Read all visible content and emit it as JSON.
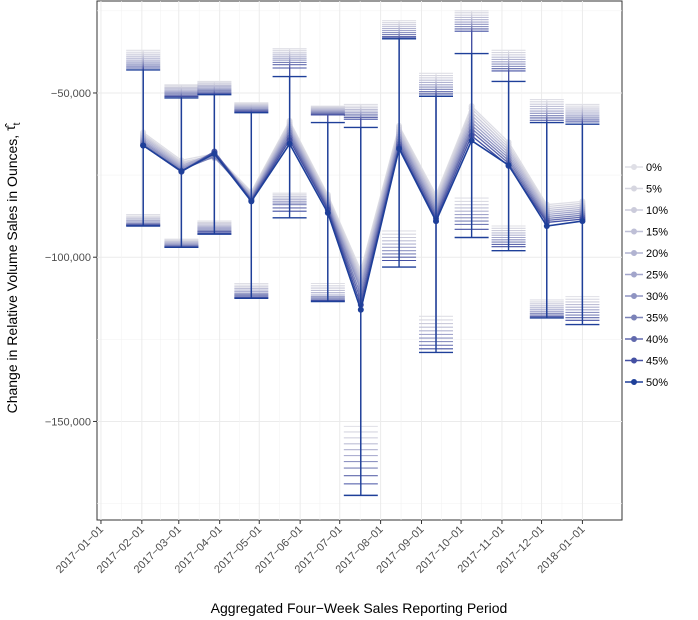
{
  "chart_data": {
    "type": "line",
    "xlabel": "Aggregated Four−Week Sales Reporting Period",
    "ylabel": "Change in Relative Volume Sales in Ounces, ",
    "ylabel_symbol": "τ̂",
    "ylabel_subscript": "t",
    "x_ticks": [
      "2017−01−01",
      "2017−02−01",
      "2017−03−01",
      "2017−04−01",
      "2017−05−01",
      "2017−06−01",
      "2017−07−01",
      "2017−08−01",
      "2017−09−01",
      "2017−10−01",
      "2017−11−01",
      "2017−12−01",
      "2018−01−01"
    ],
    "x_tick_days": [
      0,
      31,
      59,
      90,
      120,
      151,
      181,
      212,
      243,
      273,
      304,
      334,
      365
    ],
    "x_range_days": [
      -3,
      395
    ],
    "ylim": [
      -180000,
      -22000
    ],
    "y_ticks": [
      -150000,
      -100000,
      -50000
    ],
    "y_tick_labels": [
      "−150,000",
      "−100,000",
      "−50,000"
    ],
    "point_days": [
      32,
      61,
      86,
      114,
      143,
      172,
      197,
      226,
      254,
      281,
      309,
      338,
      365
    ],
    "legend_title": "",
    "series": [
      {
        "name": "0%",
        "color": "#dfdfe6",
        "values": [
          -62000,
          -70500,
          -68500,
          -80000,
          -58500,
          -81000,
          -104000,
          -60000,
          -81000,
          -54000,
          -65000,
          -84000,
          -83000
        ],
        "lower": [
          -87000,
          -94500,
          -89000,
          -108000,
          -80500,
          -108000,
          -151500,
          -92000,
          -118000,
          -82000,
          -90500,
          -113000,
          -112000
        ],
        "upper": [
          -37000,
          -47500,
          -46500,
          -53000,
          -36500,
          -54000,
          -53500,
          -28000,
          -44000,
          -25000,
          -37000,
          -52000,
          -53500
        ]
      },
      {
        "name": "5%",
        "color": "#d6d6e0",
        "values": [
          -62500,
          -71000,
          -69000,
          -80300,
          -59000,
          -81500,
          -105000,
          -60500,
          -81800,
          -54800,
          -65800,
          -84600,
          -83600
        ],
        "lower": [
          -87500,
          -94800,
          -89400,
          -108500,
          -81000,
          -108700,
          -153200,
          -93000,
          -119100,
          -83000,
          -91200,
          -113600,
          -112800
        ],
        "upper": [
          -37600,
          -47900,
          -46900,
          -53300,
          -37000,
          -54300,
          -54000,
          -28600,
          -44700,
          -25600,
          -37700,
          -52700,
          -54000
        ]
      },
      {
        "name": "10%",
        "color": "#cbcbdb",
        "values": [
          -63000,
          -71400,
          -69400,
          -80600,
          -59600,
          -82000,
          -106000,
          -61200,
          -82600,
          -55800,
          -66600,
          -85200,
          -84200
        ],
        "lower": [
          -88000,
          -95100,
          -89800,
          -109000,
          -81500,
          -109400,
          -155000,
          -94000,
          -120200,
          -84000,
          -91900,
          -114200,
          -113600
        ],
        "upper": [
          -38200,
          -48300,
          -47300,
          -53600,
          -37600,
          -54600,
          -54500,
          -29200,
          -45400,
          -26300,
          -38400,
          -53400,
          -54600
        ]
      },
      {
        "name": "15%",
        "color": "#bebfd6",
        "values": [
          -63500,
          -71800,
          -69800,
          -80900,
          -60200,
          -82500,
          -107000,
          -61900,
          -83400,
          -56800,
          -67400,
          -85800,
          -84800
        ],
        "lower": [
          -88400,
          -95400,
          -90200,
          -109500,
          -82000,
          -110100,
          -156800,
          -95000,
          -121300,
          -85000,
          -92600,
          -114800,
          -114400
        ],
        "upper": [
          -38800,
          -48700,
          -47700,
          -53900,
          -38200,
          -54900,
          -55000,
          -29800,
          -46100,
          -27000,
          -39100,
          -54100,
          -55200
        ]
      },
      {
        "name": "20%",
        "color": "#b1b3d1",
        "values": [
          -64000,
          -72200,
          -68200,
          -81200,
          -60800,
          -83000,
          -108000,
          -62600,
          -84200,
          -57800,
          -68200,
          -86400,
          -85400
        ],
        "lower": [
          -88800,
          -95700,
          -90600,
          -110000,
          -82500,
          -110800,
          -158600,
          -96000,
          -122400,
          -86000,
          -93300,
          -115400,
          -115200
        ],
        "upper": [
          -39400,
          -49100,
          -48100,
          -54200,
          -38800,
          -55200,
          -55500,
          -30400,
          -46800,
          -27700,
          -39800,
          -54800,
          -55800
        ]
      },
      {
        "name": "25%",
        "color": "#a2a5cb",
        "values": [
          -64500,
          -72600,
          -68600,
          -81500,
          -61400,
          -83500,
          -109000,
          -63300,
          -85000,
          -58800,
          -69000,
          -87000,
          -86000
        ],
        "lower": [
          -89200,
          -96000,
          -91000,
          -110500,
          -83000,
          -111500,
          -160400,
          -97000,
          -123500,
          -87000,
          -94000,
          -116000,
          -116000
        ],
        "upper": [
          -40000,
          -49500,
          -48500,
          -54500,
          -39400,
          -55500,
          -56000,
          -31000,
          -47500,
          -28400,
          -40500,
          -55500,
          -56400
        ]
      },
      {
        "name": "30%",
        "color": "#8f94c2",
        "values": [
          -65000,
          -73000,
          -69000,
          -81800,
          -62000,
          -84000,
          -110000,
          -64000,
          -85800,
          -59800,
          -69800,
          -87600,
          -86600
        ],
        "lower": [
          -89600,
          -96300,
          -91400,
          -111000,
          -83500,
          -112000,
          -162200,
          -98000,
          -124600,
          -88000,
          -94700,
          -116600,
          -116800
        ],
        "upper": [
          -40600,
          -49900,
          -48900,
          -54800,
          -40000,
          -55800,
          -56500,
          -31600,
          -48200,
          -29100,
          -41200,
          -56200,
          -57000
        ]
      },
      {
        "name": "35%",
        "color": "#7b82b8",
        "values": [
          -65500,
          -73400,
          -69400,
          -82100,
          -62800,
          -84500,
          -111500,
          -64800,
          -86600,
          -60800,
          -70600,
          -88200,
          -87200
        ],
        "lower": [
          -89900,
          -96500,
          -91800,
          -111400,
          -84000,
          -112400,
          -164200,
          -99000,
          -125700,
          -89000,
          -95400,
          -117100,
          -117600
        ],
        "upper": [
          -41200,
          -50300,
          -49300,
          -55100,
          -40700,
          -56100,
          -57000,
          -32200,
          -48900,
          -29800,
          -41900,
          -56900,
          -57600
        ]
      },
      {
        "name": "40%",
        "color": "#6169ad",
        "values": [
          -66000,
          -73800,
          -67800,
          -82400,
          -63600,
          -85000,
          -113000,
          -65600,
          -87400,
          -61800,
          -71400,
          -88800,
          -87800
        ],
        "lower": [
          -90100,
          -96700,
          -92200,
          -111800,
          -85000,
          -112800,
          -166500,
          -100000,
          -126800,
          -90000,
          -96100,
          -117600,
          -118400
        ],
        "upper": [
          -41800,
          -50700,
          -49700,
          -55400,
          -41400,
          -56400,
          -57500,
          -32800,
          -49600,
          -30500,
          -42600,
          -57600,
          -58200
        ]
      },
      {
        "name": "45%",
        "color": "#4450a3",
        "values": [
          -66000,
          -74000,
          -68000,
          -82800,
          -64400,
          -85600,
          -114500,
          -66400,
          -88200,
          -63000,
          -72200,
          -89400,
          -88400
        ],
        "lower": [
          -90300,
          -96900,
          -92600,
          -112200,
          -86000,
          -113200,
          -169000,
          -101000,
          -127900,
          -91500,
          -96800,
          -118100,
          -119200
        ],
        "upper": [
          -42400,
          -51100,
          -50100,
          -55700,
          -42400,
          -56700,
          -58000,
          -33200,
          -50300,
          -31200,
          -43300,
          -58300,
          -58800
        ]
      },
      {
        "name": "50%",
        "color": "#1e3f99",
        "values": [
          -66000,
          -73800,
          -68500,
          -83000,
          -65500,
          -86500,
          -116000,
          -67000,
          -89000,
          -64500,
          -72000,
          -90500,
          -89000
        ],
        "lower": [
          -90500,
          -97000,
          -93000,
          -112500,
          -88000,
          -113500,
          -172500,
          -103000,
          -129000,
          -94000,
          -98000,
          -118500,
          -120500
        ],
        "upper": [
          -43000,
          -51500,
          -50500,
          -56000,
          -45000,
          -59000,
          -60500,
          -33500,
          -51000,
          -38000,
          -46500,
          -59000,
          -59500
        ]
      }
    ]
  }
}
